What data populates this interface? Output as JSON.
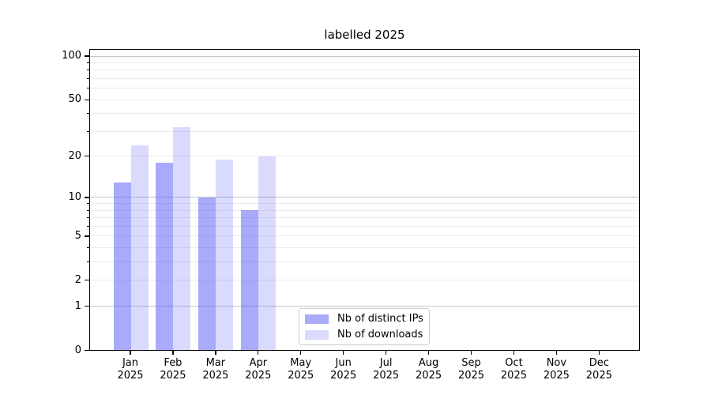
{
  "chart_data": {
    "type": "bar",
    "title": "labelled 2025",
    "year": "2025",
    "months": [
      "Jan",
      "Feb",
      "Mar",
      "Apr",
      "May",
      "Jun",
      "Jul",
      "Aug",
      "Sep",
      "Oct",
      "Nov",
      "Dec"
    ],
    "categories": [
      "Jan 2025",
      "Feb 2025",
      "Mar 2025",
      "Apr 2025",
      "May 2025",
      "Jun 2025",
      "Jul 2025",
      "Aug 2025",
      "Sep 2025",
      "Oct 2025",
      "Nov 2025",
      "Dec 2025"
    ],
    "series": [
      {
        "name": "Nb of distinct IPs",
        "color_hex": "#aaaaf9",
        "color_rgba": "rgba(85,85,245,0.50)",
        "values": [
          13,
          18,
          10,
          8,
          0,
          0,
          0,
          0,
          0,
          0,
          0,
          0
        ]
      },
      {
        "name": "Nb of downloads",
        "color_hex": "#dadaf9",
        "color_rgba": "rgba(85,85,245,0.22)",
        "values": [
          24,
          32,
          19,
          20,
          0,
          0,
          0,
          0,
          0,
          0,
          0,
          0
        ]
      }
    ],
    "y_axis": {
      "scale": "log10(1+value)",
      "tick_values": [
        0,
        1,
        2,
        5,
        10,
        20,
        50,
        100
      ],
      "major_gridlines": [
        1,
        10,
        100
      ],
      "minor_gridlines": [
        2,
        3,
        4,
        5,
        6,
        7,
        8,
        9,
        20,
        30,
        40,
        50,
        60,
        70,
        80,
        90
      ],
      "ymin": 0,
      "ymax": 112
    },
    "x_axis": {
      "label_line2": "2025"
    },
    "legend_position": "lower center",
    "grid": true,
    "colors": {
      "background": "#ffffff",
      "axis": "#000000",
      "major_gridline": "#c6c6c6",
      "minor_gridline": "#ebebeb",
      "legend_border": "#cccccc",
      "text": "#000000"
    }
  }
}
